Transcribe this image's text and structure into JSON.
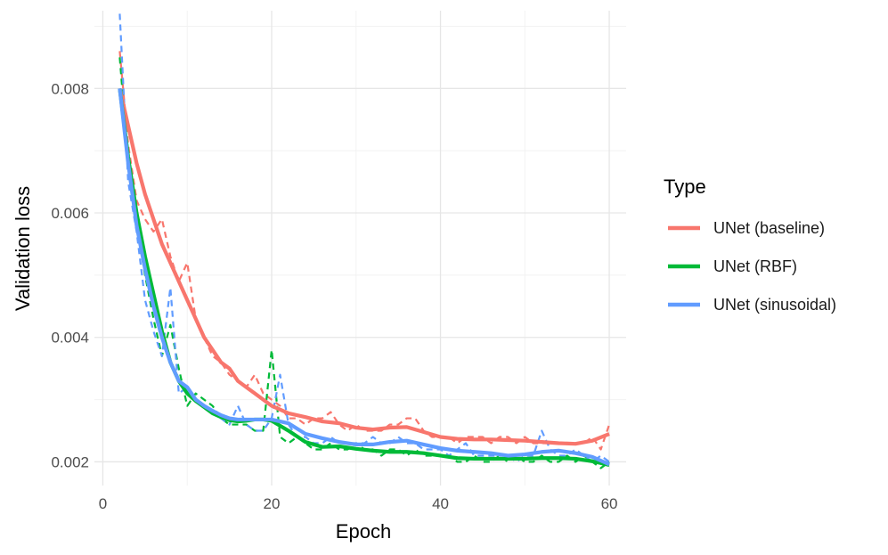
{
  "chart_data": {
    "type": "line",
    "title": "",
    "xlabel": "Epoch",
    "ylabel": "Validation loss",
    "xlim": [
      -1,
      62
    ],
    "ylim": [
      0.00162,
      0.00925
    ],
    "x_ticks": [
      0,
      20,
      40,
      60
    ],
    "x_tick_labels": [
      "0",
      "20",
      "40",
      "60"
    ],
    "y_ticks": [
      0.002,
      0.004,
      0.006,
      0.008
    ],
    "y_tick_labels": [
      "0.002",
      "0.004",
      "0.006",
      "0.008"
    ],
    "grid": true,
    "legend": {
      "title": "Type",
      "position": "right",
      "entries": [
        "UNet (baseline)",
        "UNet (RBF)",
        "UNet (sinusoidal)"
      ]
    },
    "series": [
      {
        "name": "UNet (baseline)",
        "color": "#F8766D",
        "raw": {
          "x": [
            2,
            3,
            4,
            5,
            6,
            7,
            8,
            9,
            10,
            11,
            12,
            13,
            14,
            15,
            16,
            17,
            18,
            19,
            20,
            21,
            22,
            23,
            24,
            25,
            26,
            27,
            28,
            29,
            30,
            31,
            32,
            33,
            34,
            35,
            36,
            37,
            38,
            39,
            40,
            41,
            42,
            43,
            44,
            45,
            46,
            47,
            48,
            49,
            50,
            51,
            52,
            53,
            54,
            55,
            56,
            57,
            58,
            59,
            60
          ],
          "y": [
            0.0086,
            0.0071,
            0.0062,
            0.0059,
            0.0057,
            0.0059,
            0.0053,
            0.0049,
            0.0052,
            0.0043,
            0.004,
            0.0037,
            0.0036,
            0.0034,
            0.0033,
            0.0032,
            0.0034,
            0.0031,
            0.003,
            0.0029,
            0.0027,
            0.0027,
            0.0026,
            0.0027,
            0.0027,
            0.0028,
            0.0026,
            0.0025,
            0.0026,
            0.0025,
            0.0025,
            0.0025,
            0.0026,
            0.0026,
            0.0027,
            0.0027,
            0.0025,
            0.0024,
            0.0024,
            0.0024,
            0.0023,
            0.0024,
            0.0024,
            0.0024,
            0.0023,
            0.0024,
            0.0024,
            0.0023,
            0.0024,
            0.0023,
            0.0023,
            0.0023,
            0.0023,
            0.0023,
            0.0023,
            0.0023,
            0.0024,
            0.0022,
            0.0026
          ]
        },
        "smooth": {
          "x": [
            2,
            3,
            4,
            5,
            6,
            7,
            8,
            9,
            10,
            11,
            12,
            13,
            14,
            15,
            16,
            17,
            18,
            19,
            20,
            22,
            24,
            26,
            28,
            30,
            32,
            34,
            36,
            38,
            40,
            42,
            44,
            46,
            48,
            50,
            52,
            54,
            56,
            58,
            60
          ],
          "y": [
            0.008,
            0.0074,
            0.0068,
            0.0063,
            0.0059,
            0.0055,
            0.0052,
            0.0049,
            0.0046,
            0.0043,
            0.004,
            0.0038,
            0.0036,
            0.0035,
            0.0033,
            0.0032,
            0.0031,
            0.003,
            0.0029,
            0.00278,
            0.00272,
            0.00265,
            0.00262,
            0.00255,
            0.00252,
            0.00255,
            0.00256,
            0.00248,
            0.0024,
            0.00237,
            0.00236,
            0.00236,
            0.00235,
            0.00234,
            0.00232,
            0.0023,
            0.00229,
            0.00234,
            0.00245
          ]
        }
      },
      {
        "name": "UNet (RBF)",
        "color": "#00BA38",
        "raw": {
          "x": [
            2,
            3,
            4,
            5,
            6,
            7,
            8,
            9,
            10,
            11,
            12,
            13,
            14,
            15,
            16,
            17,
            18,
            19,
            20,
            21,
            22,
            23,
            24,
            25,
            26,
            27,
            28,
            29,
            30,
            31,
            32,
            33,
            34,
            35,
            36,
            37,
            38,
            39,
            40,
            41,
            42,
            43,
            44,
            45,
            46,
            47,
            48,
            49,
            50,
            51,
            52,
            53,
            54,
            55,
            56,
            57,
            58,
            59,
            60
          ],
          "y": [
            0.0085,
            0.0068,
            0.0058,
            0.005,
            0.0043,
            0.0037,
            0.0042,
            0.0035,
            0.0029,
            0.0031,
            0.003,
            0.0029,
            0.0027,
            0.0026,
            0.0026,
            0.0026,
            0.0025,
            0.0025,
            0.0038,
            0.0024,
            0.0023,
            0.0024,
            0.0023,
            0.0022,
            0.0022,
            0.0023,
            0.0022,
            0.0022,
            0.0023,
            0.0022,
            0.0022,
            0.0021,
            0.0022,
            0.0022,
            0.0021,
            0.0022,
            0.0021,
            0.0021,
            0.0021,
            0.0021,
            0.002,
            0.002,
            0.0021,
            0.002,
            0.002,
            0.0021,
            0.002,
            0.0021,
            0.002,
            0.002,
            0.0021,
            0.002,
            0.002,
            0.0021,
            0.002,
            0.0021,
            0.002,
            0.0019,
            0.002
          ]
        },
        "smooth": {
          "x": [
            2,
            3,
            4,
            5,
            6,
            7,
            8,
            9,
            10,
            11,
            12,
            13,
            14,
            15,
            16,
            17,
            18,
            19,
            20,
            22,
            24,
            26,
            28,
            30,
            32,
            34,
            36,
            38,
            40,
            42,
            44,
            46,
            48,
            50,
            52,
            54,
            56,
            58,
            60
          ],
          "y": [
            0.008,
            0.0069,
            0.006,
            0.0053,
            0.0047,
            0.0041,
            0.0036,
            0.0033,
            0.0031,
            0.00298,
            0.00288,
            0.00278,
            0.00272,
            0.00267,
            0.00265,
            0.00266,
            0.00268,
            0.00268,
            0.00266,
            0.0025,
            0.00232,
            0.00224,
            0.00225,
            0.00221,
            0.00218,
            0.00216,
            0.00216,
            0.00214,
            0.0021,
            0.00206,
            0.00205,
            0.00205,
            0.00205,
            0.00205,
            0.00206,
            0.00206,
            0.00205,
            0.00201,
            0.00195
          ]
        }
      },
      {
        "name": "UNet (sinusoidal)",
        "color": "#619CFF",
        "raw": {
          "x": [
            2,
            3,
            4,
            5,
            6,
            7,
            8,
            9,
            10,
            11,
            12,
            13,
            14,
            15,
            16,
            17,
            18,
            19,
            20,
            21,
            22,
            23,
            24,
            25,
            26,
            27,
            28,
            29,
            30,
            31,
            32,
            33,
            34,
            35,
            36,
            37,
            38,
            39,
            40,
            41,
            42,
            43,
            44,
            45,
            46,
            47,
            48,
            49,
            50,
            51,
            52,
            53,
            54,
            55,
            56,
            57,
            58,
            59,
            60
          ],
          "y": [
            0.0092,
            0.0065,
            0.0057,
            0.0046,
            0.0041,
            0.0037,
            0.0048,
            0.0031,
            0.0032,
            0.003,
            0.0029,
            0.0028,
            0.0027,
            0.0026,
            0.0029,
            0.0026,
            0.0025,
            0.0025,
            0.0027,
            0.0034,
            0.0026,
            0.0024,
            0.0024,
            0.0023,
            0.0023,
            0.0024,
            0.0023,
            0.0023,
            0.0023,
            0.0023,
            0.0024,
            0.0023,
            0.0023,
            0.0024,
            0.0023,
            0.0023,
            0.0022,
            0.0022,
            0.0022,
            0.0021,
            0.0022,
            0.0023,
            0.0021,
            0.0021,
            0.0021,
            0.0021,
            0.0021,
            0.002,
            0.0021,
            0.0021,
            0.0025,
            0.0022,
            0.0021,
            0.0021,
            0.0022,
            0.0021,
            0.002,
            0.0021,
            0.002
          ]
        },
        "smooth": {
          "x": [
            2,
            3,
            4,
            5,
            6,
            7,
            8,
            9,
            10,
            11,
            12,
            13,
            14,
            15,
            16,
            17,
            18,
            19,
            20,
            22,
            24,
            26,
            28,
            30,
            32,
            34,
            36,
            38,
            40,
            42,
            44,
            46,
            48,
            50,
            52,
            54,
            56,
            58,
            60
          ],
          "y": [
            0.008,
            0.0068,
            0.0058,
            0.0051,
            0.0045,
            0.004,
            0.0036,
            0.0033,
            0.0032,
            0.003,
            0.0029,
            0.00282,
            0.00275,
            0.0027,
            0.00268,
            0.00268,
            0.00268,
            0.00268,
            0.00268,
            0.00262,
            0.00245,
            0.00238,
            0.00232,
            0.00228,
            0.00228,
            0.00232,
            0.00234,
            0.00228,
            0.00222,
            0.00218,
            0.00216,
            0.00214,
            0.0021,
            0.00212,
            0.00216,
            0.00218,
            0.00214,
            0.00208,
            0.00196
          ]
        }
      }
    ]
  }
}
